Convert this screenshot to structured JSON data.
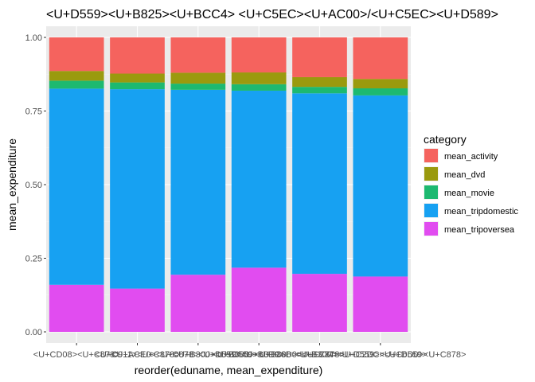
{
  "chart_data": {
    "type": "bar",
    "stacked": true,
    "title": "<U+D559><U+B825><U+BCC4> <U+C5EC><U+AC00>/<U+C5EC><U+D589>",
    "xlabel": "reorder(eduname, mean_expenditure)",
    "ylabel": "mean_expenditure",
    "ylim": [
      0,
      1
    ],
    "yticks": [
      "0.00",
      "0.25",
      "0.50",
      "0.75",
      "1.00"
    ],
    "grid": true,
    "legend": {
      "title": "category",
      "placement": "right"
    },
    "categories": [
      "<U+CD08><U+C878>",
      "<U+C911><U+C878>",
      "<U+ACE0><U+C878>",
      "<U+B300><U+C878>",
      "<U+B300><U+D559><U+C6D0>",
      "<U+C804><U+BB38><U+B300><U+C878>"
    ],
    "tick_labels": [
      "<U+CD08><U+C878>",
      "<U+C911><U+C878>",
      "<U+ACE0><U+C878><U+D559><U+B3D9>",
      "<U+B300><U+D559><U+C6D0><U+C878>",
      "<U+B300><U+B808><U+C774><U+C2DC><U+D559>",
      "<U+B300><U+D559><U+C6D0><U+C878>"
    ],
    "series": [
      {
        "name": "mean_tripoversea",
        "color": "#E14CF0",
        "values": [
          0.16,
          0.147,
          0.194,
          0.218,
          0.197,
          0.188
        ]
      },
      {
        "name": "mean_tripdomestic",
        "color": "#17A1F2",
        "values": [
          0.666,
          0.677,
          0.628,
          0.601,
          0.613,
          0.615
        ]
      },
      {
        "name": "mean_movie",
        "color": "#1DB970",
        "values": [
          0.027,
          0.023,
          0.021,
          0.022,
          0.022,
          0.024
        ]
      },
      {
        "name": "mean_dvd",
        "color": "#9A9A0E",
        "values": [
          0.033,
          0.03,
          0.037,
          0.04,
          0.033,
          0.032
        ]
      },
      {
        "name": "mean_activity",
        "color": "#F5635E",
        "values": [
          0.114,
          0.123,
          0.12,
          0.119,
          0.135,
          0.141
        ]
      }
    ],
    "legend_order": [
      "mean_activity",
      "mean_dvd",
      "mean_movie",
      "mean_tripdomestic",
      "mean_tripoversea"
    ]
  }
}
